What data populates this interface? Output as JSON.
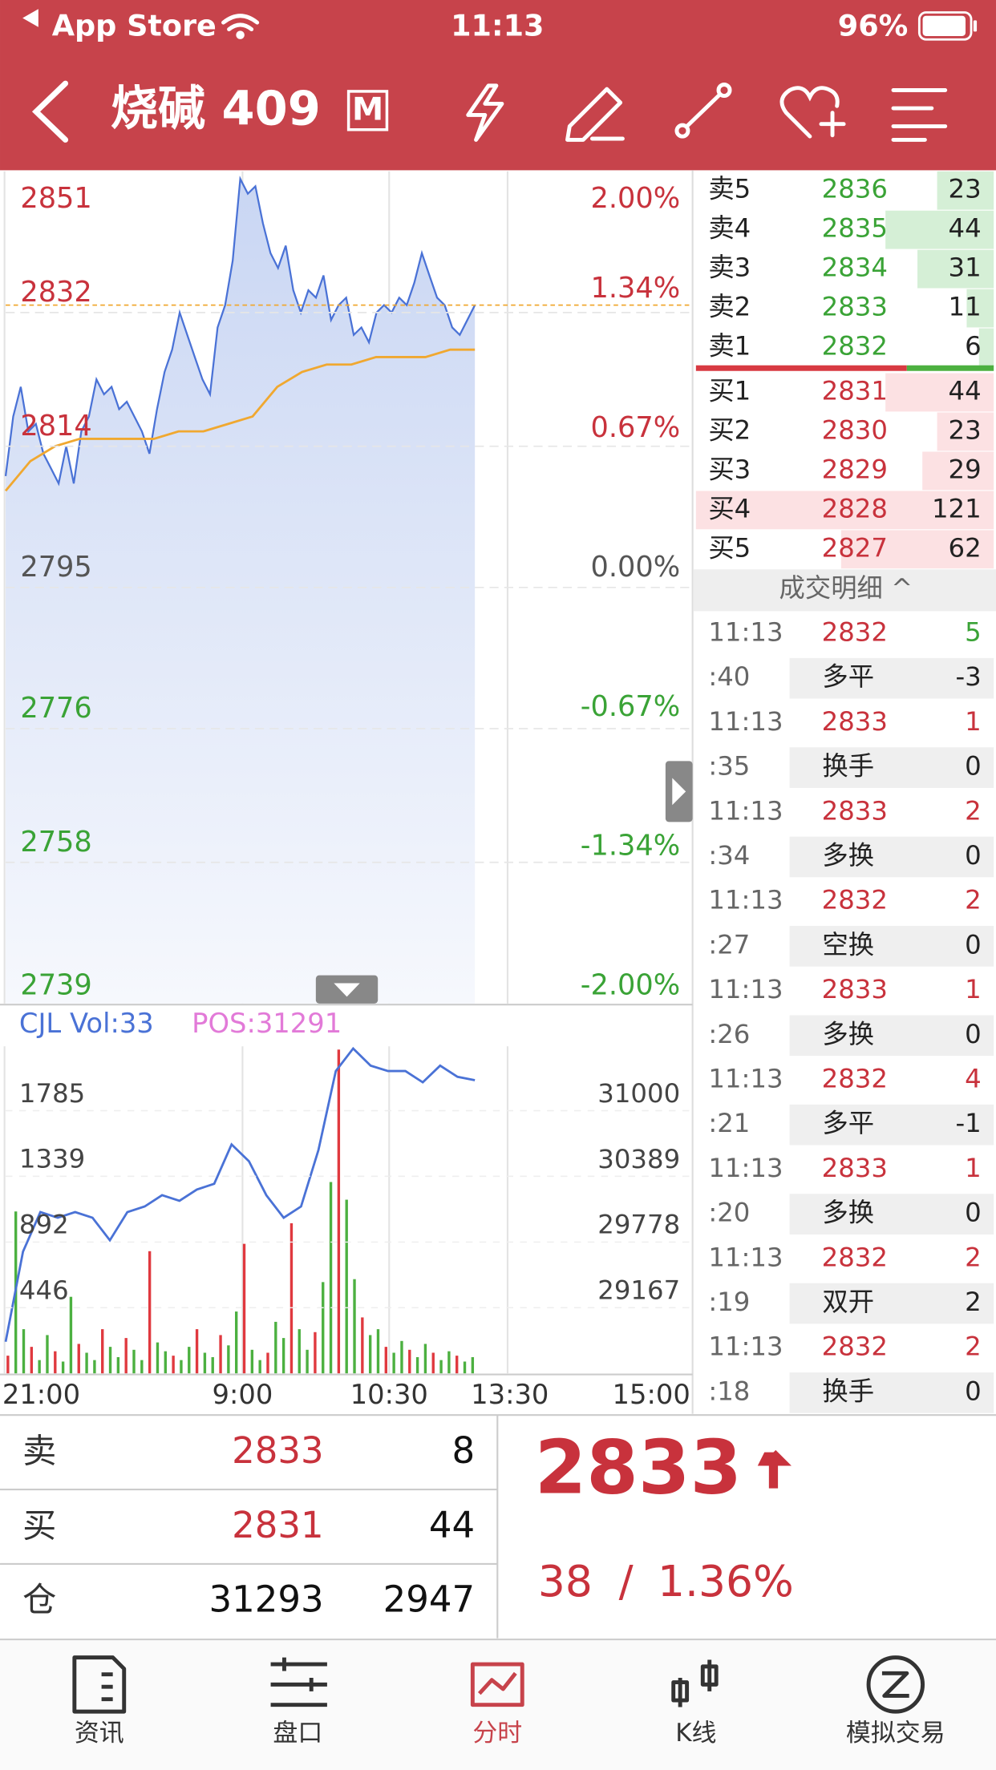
{
  "status_bar": {
    "carrier": "App Store",
    "time": "11:13",
    "battery": "96%"
  },
  "nav": {
    "title": "烧碱 409",
    "badge": "M"
  },
  "chart_data": [
    {
      "type": "line",
      "ylim": [
        2739,
        2851
      ],
      "yticks": [
        2851,
        2832,
        2814,
        2795,
        2776,
        2758,
        2739
      ],
      "y2lim": [
        -2,
        2
      ],
      "y2ticks": [
        {
          "value": 2,
          "label": "2.00%"
        },
        {
          "value": 1.34,
          "label": "1.34%"
        },
        {
          "value": 0.67,
          "label": "0.67%"
        },
        {
          "value": 0,
          "label": "0.00%"
        },
        {
          "value": -0.67,
          "label": "-0.67%"
        },
        {
          "value": -1.34,
          "label": "-1.34%"
        },
        {
          "value": -2,
          "label": "-2.00%"
        }
      ],
      "grid": true,
      "series": [
        {
          "color": "#4a72d6",
          "values": [
            2810,
            2818,
            2822,
            2816,
            2817,
            2813,
            2811,
            2809,
            2814,
            2809,
            2816,
            2818,
            2823,
            2821,
            2822,
            2819,
            2820,
            2818,
            2816,
            2813,
            2819,
            2824,
            2827,
            2832,
            2829,
            2826,
            2823,
            2821,
            2830,
            2833,
            2839,
            2850,
            2848,
            2849,
            2844,
            2840,
            2838,
            2841,
            2835,
            2832,
            2835,
            2834,
            2837,
            2831,
            2833,
            2834,
            2829,
            2830,
            2828,
            2832,
            2833,
            2832,
            2834,
            2833,
            2836,
            2840,
            2837,
            2834,
            2833,
            2830,
            2829,
            2831,
            2833
          ]
        },
        {
          "color": "#f0a830",
          "values": [
            2808,
            2812,
            2814,
            2815,
            2815,
            2815,
            2815,
            2816,
            2816,
            2817,
            2818,
            2822,
            2824,
            2825,
            2825,
            2826,
            2826,
            2826,
            2827,
            2827
          ]
        }
      ]
    },
    {
      "type": "bar",
      "ylim": [
        0,
        2222
      ],
      "yticks": [
        1785,
        1339,
        892,
        446
      ],
      "y2lim": [
        28556,
        31600
      ],
      "y2ticks": [
        31000,
        30389,
        29778,
        29167
      ],
      "x_labels": [
        "21:00",
        "9:00",
        "10:30",
        "13:30",
        "15:00"
      ],
      "series": [
        {
          "name": "CJL Vol:33",
          "color": "#4a72d6",
          "values": [
            120,
            1100,
            300,
            180,
            90,
            260,
            150,
            80,
            520,
            200,
            140,
            90,
            300,
            180,
            110,
            240,
            160,
            90,
            830,
            210,
            150,
            120,
            90,
            180,
            300,
            140,
            110,
            260,
            190,
            420,
            880,
            160,
            90,
            140,
            350,
            240,
            1020,
            300,
            160,
            280,
            620,
            1300,
            2200,
            1180,
            640,
            380,
            260,
            300,
            180,
            140,
            220,
            160,
            110,
            200,
            140,
            90,
            150,
            120,
            80,
            110
          ]
        },
        {
          "name": "POS:31291",
          "color": "#e27ad8",
          "axis": "y2",
          "line_color": "#4a72d6",
          "values": [
            28850,
            29690,
            30057,
            30005,
            30057,
            30005,
            29795,
            30057,
            30110,
            30214,
            30162,
            30267,
            30320,
            30687,
            30530,
            30214,
            30005,
            30110,
            30634,
            31370,
            31580,
            31420,
            31370,
            31370,
            31265,
            31420,
            31317,
            31285
          ]
        }
      ]
    }
  ],
  "order_book": {
    "asks": [
      {
        "label": "卖5",
        "price": 2836,
        "qty": 23
      },
      {
        "label": "卖4",
        "price": 2835,
        "qty": 44
      },
      {
        "label": "卖3",
        "price": 2834,
        "qty": 31
      },
      {
        "label": "卖2",
        "price": 2833,
        "qty": 11
      },
      {
        "label": "卖1",
        "price": 2832,
        "qty": 6
      }
    ],
    "bids": [
      {
        "label": "买1",
        "price": 2831,
        "qty": 44
      },
      {
        "label": "买2",
        "price": 2830,
        "qty": 23
      },
      {
        "label": "买3",
        "price": 2829,
        "qty": 29
      },
      {
        "label": "买4",
        "price": 2828,
        "qty": 121
      },
      {
        "label": "买5",
        "price": 2827,
        "qty": 62
      }
    ]
  },
  "trades_header": "成交明细 ^",
  "trades": [
    {
      "time": "11:13",
      "price": 2832,
      "volume": 5,
      "color": "#3aa336",
      "seconds": ":40",
      "kind": "多平",
      "change": -3
    },
    {
      "time": "11:13",
      "price": 2833,
      "volume": 1,
      "color": "#c8323c",
      "seconds": ":35",
      "kind": "换手",
      "change": 0
    },
    {
      "time": "11:13",
      "price": 2833,
      "volume": 2,
      "color": "#c8323c",
      "seconds": ":34",
      "kind": "多换",
      "change": 0
    },
    {
      "time": "11:13",
      "price": 2832,
      "volume": 2,
      "color": "#c8323c",
      "seconds": ":27",
      "kind": "空换",
      "change": 0
    },
    {
      "time": "11:13",
      "price": 2833,
      "volume": 1,
      "color": "#c8323c",
      "seconds": ":26",
      "kind": "多换",
      "change": 0
    },
    {
      "time": "11:13",
      "price": 2832,
      "volume": 4,
      "color": "#c8323c",
      "seconds": ":21",
      "kind": "多平",
      "change": -1
    },
    {
      "time": "11:13",
      "price": 2833,
      "volume": 1,
      "color": "#c8323c",
      "seconds": ":20",
      "kind": "多换",
      "change": 0
    },
    {
      "time": "11:13",
      "price": 2832,
      "volume": 2,
      "color": "#c8323c",
      "seconds": ":19",
      "kind": "双开",
      "change": 2
    },
    {
      "time": "11:13",
      "price": 2832,
      "volume": 2,
      "color": "#c8323c",
      "seconds": ":18",
      "kind": "换手",
      "change": 0
    }
  ],
  "quote_panel": {
    "rows": [
      {
        "label": "卖",
        "price": 2833,
        "qty": 8
      },
      {
        "label": "买",
        "price": 2831,
        "qty": 44
      },
      {
        "label": "仓",
        "price": 31293,
        "qty": 2947
      }
    ],
    "last": {
      "price": 2833,
      "change": 38,
      "separator": "/",
      "pct": "1.36%"
    }
  },
  "tabs": [
    "资讯",
    "盘口",
    "分时",
    "K线",
    "模拟交易"
  ],
  "active_tab": 2
}
